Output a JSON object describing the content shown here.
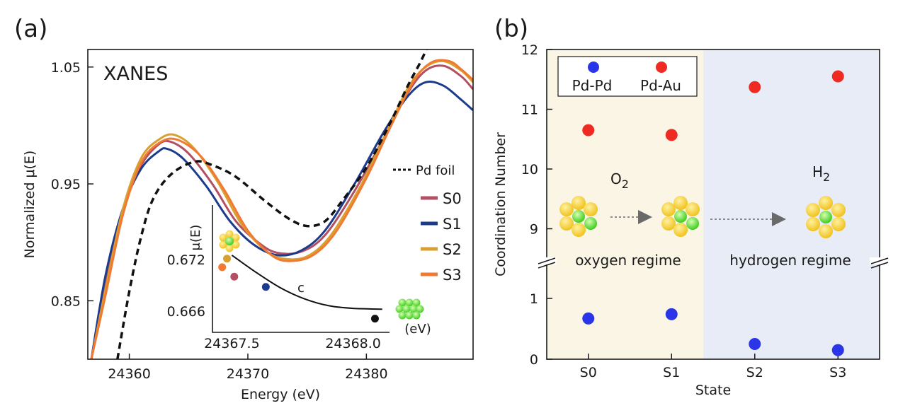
{
  "chart_data": [
    {
      "type": "line",
      "panel_label": "(a)",
      "title": "XANES",
      "xlabel": "Energy (eV)",
      "ylabel": "Normalized  μ(E)",
      "xlim": [
        24356.5,
        24389
      ],
      "ylim": [
        0.8,
        1.065
      ],
      "x_ticks": [
        24360,
        24370,
        24380
      ],
      "y_ticks": [
        0.85,
        0.95,
        1.05
      ],
      "legend_title": "Pd foil",
      "series": [
        {
          "name": "Pd foil",
          "color": "#111111",
          "dashed": true,
          "points": [
            [
              24359.0,
              0.8
            ],
            [
              24360.0,
              0.858
            ],
            [
              24361.0,
              0.905
            ],
            [
              24362.0,
              0.937
            ],
            [
              24363.5,
              0.958
            ],
            [
              24365.5,
              0.969
            ],
            [
              24367.0,
              0.966
            ],
            [
              24369.0,
              0.956
            ],
            [
              24371.5,
              0.935
            ],
            [
              24373.5,
              0.92
            ],
            [
              24375.0,
              0.914
            ],
            [
              24376.5,
              0.918
            ],
            [
              24378.0,
              0.936
            ],
            [
              24380.0,
              0.964
            ],
            [
              24382.0,
              1.002
            ],
            [
              24383.5,
              1.034
            ],
            [
              24384.5,
              1.053
            ],
            [
              24385.2,
              1.068
            ]
          ]
        },
        {
          "name": "S0",
          "color": "#b24f62",
          "points": [
            [
              24356.8,
              0.8
            ],
            [
              24358.0,
              0.865
            ],
            [
              24359.5,
              0.928
            ],
            [
              24361.0,
              0.966
            ],
            [
              24362.5,
              0.984
            ],
            [
              24363.5,
              0.986
            ],
            [
              24365.0,
              0.976
            ],
            [
              24367.0,
              0.95
            ],
            [
              24369.0,
              0.918
            ],
            [
              24371.0,
              0.899
            ],
            [
              24372.5,
              0.891
            ],
            [
              24374.5,
              0.892
            ],
            [
              24376.5,
              0.906
            ],
            [
              24379.0,
              0.944
            ],
            [
              24381.5,
              0.99
            ],
            [
              24383.5,
              1.028
            ],
            [
              24385.0,
              1.047
            ],
            [
              24386.5,
              1.051
            ],
            [
              24388.0,
              1.042
            ],
            [
              24389.0,
              1.031
            ]
          ]
        },
        {
          "name": "S1",
          "color": "#1d3b8c",
          "points": [
            [
              24356.8,
              0.8
            ],
            [
              24358.0,
              0.872
            ],
            [
              24359.5,
              0.93
            ],
            [
              24361.0,
              0.963
            ],
            [
              24362.5,
              0.978
            ],
            [
              24363.2,
              0.98
            ],
            [
              24364.5,
              0.972
            ],
            [
              24366.5,
              0.948
            ],
            [
              24368.5,
              0.918
            ],
            [
              24370.5,
              0.898
            ],
            [
              24372.5,
              0.889
            ],
            [
              24374.5,
              0.893
            ],
            [
              24376.5,
              0.91
            ],
            [
              24379.0,
              0.95
            ],
            [
              24381.5,
              0.995
            ],
            [
              24383.5,
              1.025
            ],
            [
              24385.0,
              1.037
            ],
            [
              24386.5,
              1.034
            ],
            [
              24388.0,
              1.022
            ],
            [
              24389.0,
              1.013
            ]
          ]
        },
        {
          "name": "S2",
          "color": "#d9a030",
          "points": [
            [
              24356.8,
              0.8
            ],
            [
              24358.0,
              0.86
            ],
            [
              24359.5,
              0.93
            ],
            [
              24361.0,
              0.972
            ],
            [
              24362.5,
              0.988
            ],
            [
              24363.8,
              0.992
            ],
            [
              24365.5,
              0.98
            ],
            [
              24367.5,
              0.951
            ],
            [
              24369.5,
              0.915
            ],
            [
              24371.5,
              0.893
            ],
            [
              24373.0,
              0.886
            ],
            [
              24375.0,
              0.888
            ],
            [
              24377.0,
              0.906
            ],
            [
              24379.5,
              0.948
            ],
            [
              24381.5,
              0.99
            ],
            [
              24383.5,
              1.032
            ],
            [
              24385.0,
              1.05
            ],
            [
              24386.5,
              1.055
            ],
            [
              24388.0,
              1.047
            ],
            [
              24389.0,
              1.037
            ]
          ]
        },
        {
          "name": "S3",
          "color": "#f07a32",
          "points": [
            [
              24356.8,
              0.8
            ],
            [
              24358.0,
              0.855
            ],
            [
              24359.5,
              0.925
            ],
            [
              24361.0,
              0.968
            ],
            [
              24362.5,
              0.985
            ],
            [
              24364.0,
              0.988
            ],
            [
              24366.0,
              0.974
            ],
            [
              24368.0,
              0.945
            ],
            [
              24370.0,
              0.91
            ],
            [
              24372.0,
              0.889
            ],
            [
              24373.5,
              0.884
            ],
            [
              24375.5,
              0.889
            ],
            [
              24377.5,
              0.91
            ],
            [
              24380.0,
              0.955
            ],
            [
              24382.0,
              0.998
            ],
            [
              24384.0,
              1.038
            ],
            [
              24385.5,
              1.054
            ],
            [
              24387.0,
              1.055
            ],
            [
              24388.0,
              1.048
            ],
            [
              24389.0,
              1.039
            ]
          ]
        }
      ],
      "inset": {
        "ylabel": "μ(E)",
        "x_unit": "(eV)",
        "xlim": [
          24367.42,
          24368.15
        ],
        "ylim": [
          0.6636,
          0.6735
        ],
        "x_ticks": [
          "24367.5",
          "24368.0"
        ],
        "y_ticks": [
          "0.672",
          "0.666"
        ],
        "fit_label": "c",
        "points": [
          {
            "name": "S2",
            "x": 24367.48,
            "y": 0.6722,
            "color": "#d9a030"
          },
          {
            "name": "S3",
            "x": 24367.46,
            "y": 0.6712,
            "color": "#f07a32"
          },
          {
            "name": "S0",
            "x": 24367.51,
            "y": 0.6701,
            "color": "#b24f62"
          },
          {
            "name": "S1",
            "x": 24367.64,
            "y": 0.6689,
            "color": "#1d3b8c"
          },
          {
            "name": "Pd foil",
            "x": 24368.09,
            "y": 0.6652,
            "color": "#111111"
          }
        ],
        "fit": [
          [
            24367.5,
            0.6726
          ],
          [
            24367.6,
            0.6706
          ],
          [
            24367.7,
            0.6688
          ],
          [
            24367.8,
            0.6675
          ],
          [
            24367.9,
            0.6667
          ],
          [
            24368.0,
            0.6664
          ],
          [
            24368.12,
            0.6663
          ]
        ]
      }
    },
    {
      "type": "scatter",
      "panel_label": "(b)",
      "xlabel": "State",
      "ylabel": "Coordination Number",
      "categories": [
        "S0",
        "S1",
        "S2",
        "S3"
      ],
      "y_ticks_lower": [
        "0",
        "1"
      ],
      "y_ticks_upper": [
        "9",
        "10",
        "11",
        "12"
      ],
      "regions": [
        {
          "label": "oxygen regime",
          "gas": "O",
          "gas_sub": "2",
          "color": "#fbf5e6"
        },
        {
          "label": "hydrogen regime",
          "gas": "H",
          "gas_sub": "2",
          "color": "#e8ecf6"
        }
      ],
      "series": [
        {
          "name": "Pd-Pd",
          "color": "#2a35e8",
          "values": [
            0.67,
            0.74,
            0.25,
            0.15
          ]
        },
        {
          "name": "Pd-Au",
          "color": "#ee2a22",
          "values": [
            10.65,
            10.57,
            11.37,
            11.55
          ]
        }
      ]
    }
  ]
}
